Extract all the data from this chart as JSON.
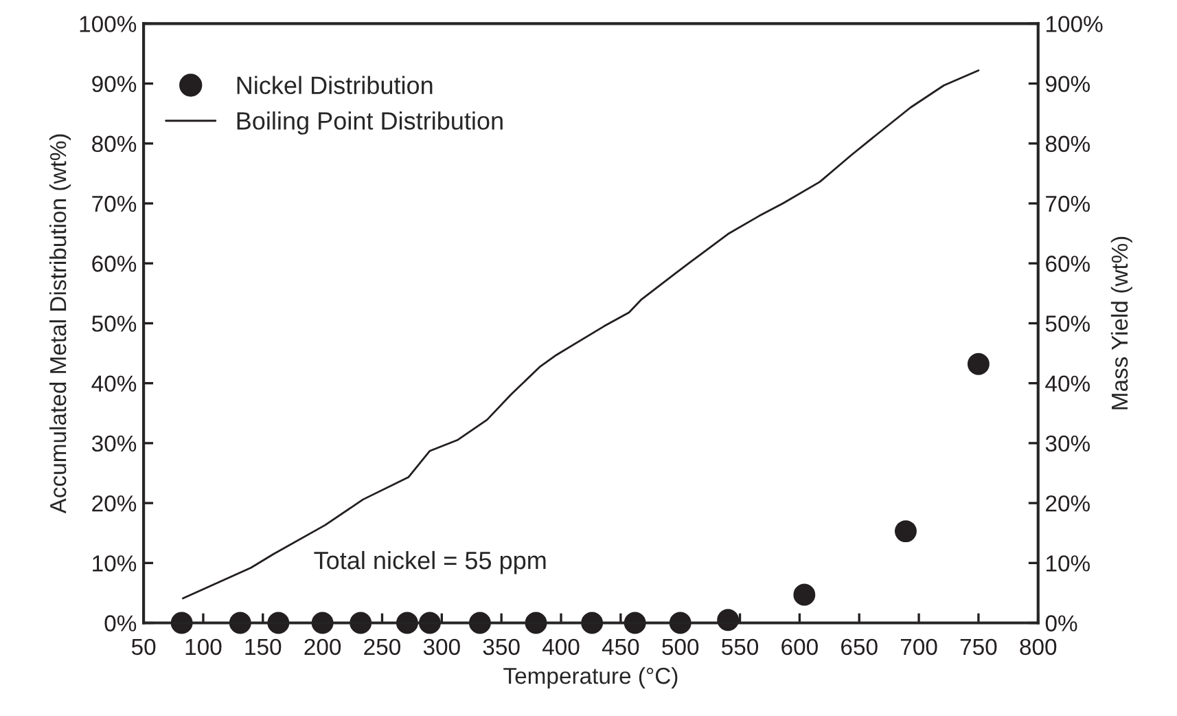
{
  "chart_data": {
    "type": "scatter",
    "xlabel": "Temperature (°C)",
    "ylabel": "Accumulated Metal Distribution (wt%)",
    "y2label": "Mass Yield (wt%)",
    "series": [
      {
        "name": "Nickel Distribution",
        "color": "#231f20",
        "marker": "circle",
        "x": [
          82,
          131,
          163,
          200,
          232,
          271,
          290,
          332,
          379,
          426,
          462,
          500,
          540,
          604,
          689,
          750
        ],
        "values": [
          0,
          0,
          0,
          0,
          0,
          0,
          0,
          0,
          0,
          0,
          0,
          0,
          0.5,
          4.7,
          15.3,
          43.2
        ]
      },
      {
        "name": "Boiling Point Distribution",
        "type": "line",
        "color": "#231f20",
        "line_style": "solid",
        "x": [
          83,
          140,
          159,
          202,
          234,
          272,
          290,
          313,
          338,
          358,
          382,
          396,
          436,
          457,
          467,
          497,
          509,
          540,
          566,
          586,
          617,
          643,
          666,
          693,
          721,
          750
        ],
        "values": [
          4.1,
          9.2,
          11.5,
          16.3,
          20.6,
          24.3,
          28.7,
          30.5,
          33.9,
          38.1,
          42.7,
          44.7,
          49.5,
          51.8,
          53.9,
          58.5,
          60.3,
          64.9,
          67.9,
          70.0,
          73.6,
          78.0,
          81.7,
          86.0,
          89.7,
          92.2
        ]
      }
    ],
    "xlim": [
      50,
      800
    ],
    "xticks": [
      50,
      100,
      150,
      200,
      250,
      300,
      350,
      400,
      450,
      500,
      550,
      600,
      650,
      700,
      750,
      800
    ],
    "ylim": [
      0,
      100
    ],
    "yticks": [
      {
        "value": 0,
        "label": "0%"
      },
      {
        "value": 10,
        "label": "10%"
      },
      {
        "value": 20,
        "label": "20%"
      },
      {
        "value": 30,
        "label": "30%"
      },
      {
        "value": 40,
        "label": "40%"
      },
      {
        "value": 50,
        "label": "50%"
      },
      {
        "value": 60,
        "label": "60%"
      },
      {
        "value": 70,
        "label": "70%"
      },
      {
        "value": 80,
        "label": "80%"
      },
      {
        "value": 90,
        "label": "90%"
      },
      {
        "value": 100,
        "label": "100%"
      }
    ],
    "y2lim": [
      0,
      100
    ],
    "y2ticks": [
      {
        "value": 0,
        "label": "0%"
      },
      {
        "value": 10,
        "label": "10%"
      },
      {
        "value": 20,
        "label": "20%"
      },
      {
        "value": 30,
        "label": "30%"
      },
      {
        "value": 40,
        "label": "40%"
      },
      {
        "value": 50,
        "label": "50%"
      },
      {
        "value": 60,
        "label": "60%"
      },
      {
        "value": 70,
        "label": "70%"
      },
      {
        "value": 80,
        "label": "80%"
      },
      {
        "value": 90,
        "label": "90%"
      },
      {
        "value": 100,
        "label": "100%"
      }
    ],
    "annotations": [
      "Total nickel = 55 ppm"
    ],
    "grid": false,
    "legend": "top left"
  }
}
